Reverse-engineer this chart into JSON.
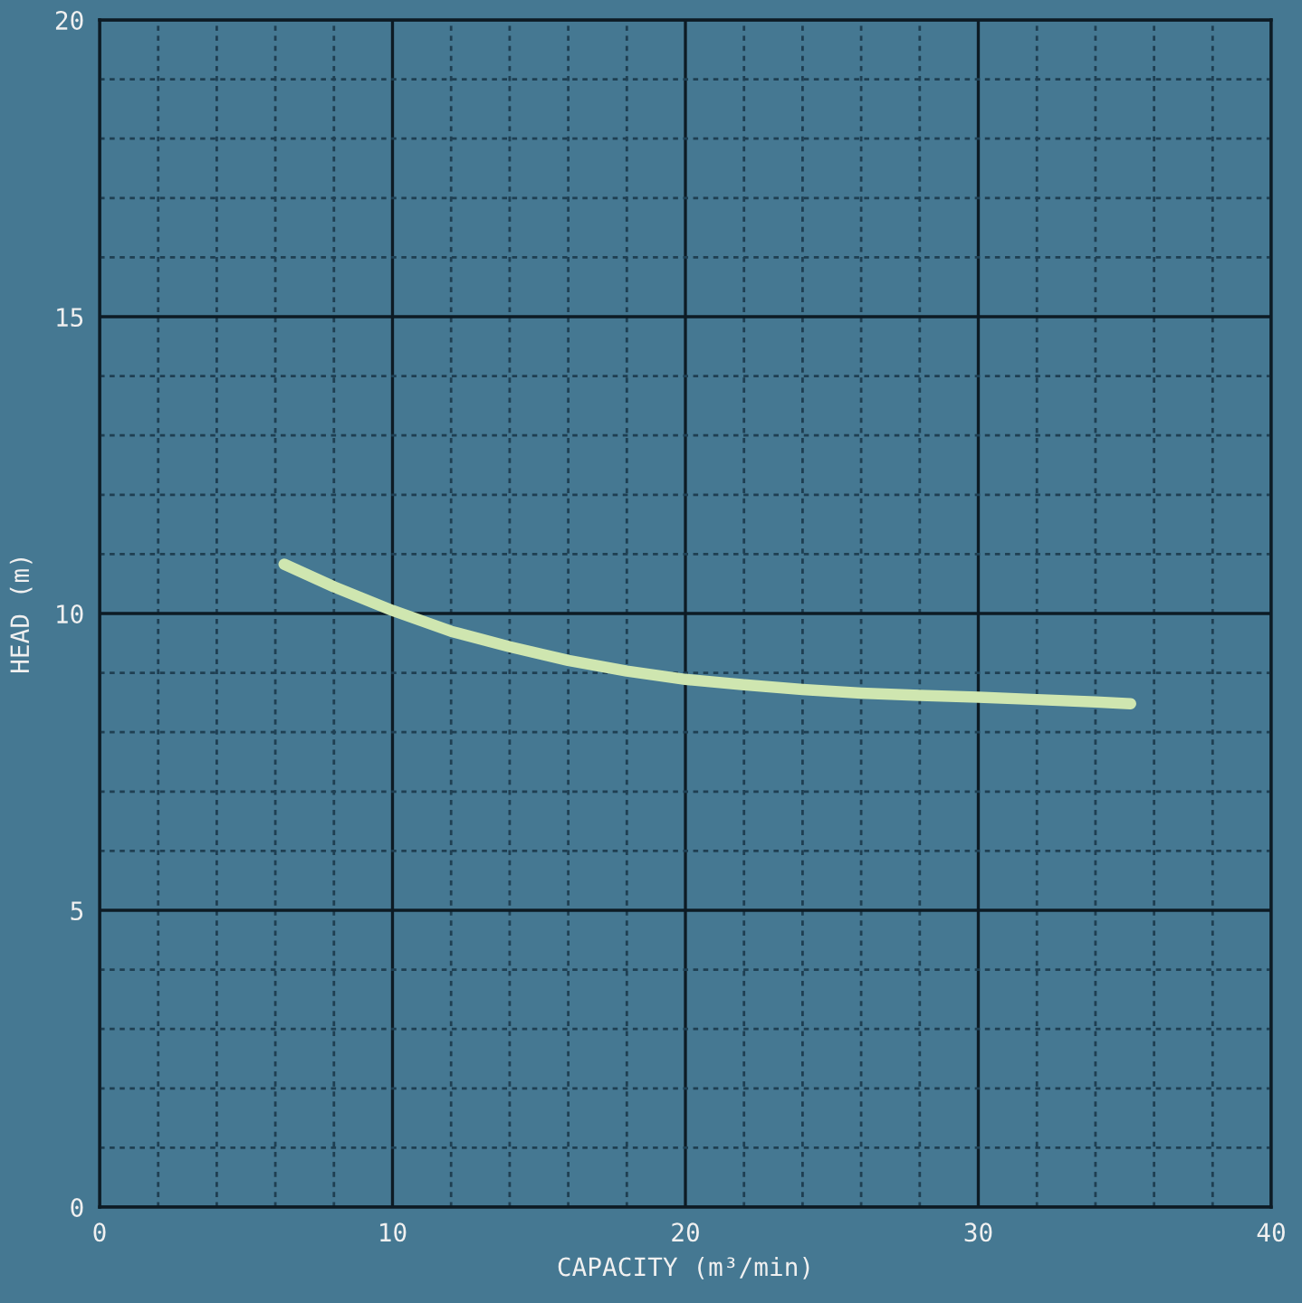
{
  "chart_data": {
    "type": "line",
    "xlabel": "CAPACITY (m³/min)",
    "ylabel": "HEAD (m)",
    "series": [
      {
        "color": "#cfe6b0",
        "x": [
          6.3,
          8,
          10,
          12,
          14,
          16,
          18,
          20,
          22,
          24,
          26,
          28,
          30,
          32,
          34,
          35.2
        ],
        "values": [
          10.83,
          10.45,
          10.05,
          9.7,
          9.44,
          9.21,
          9.03,
          8.89,
          8.8,
          8.72,
          8.66,
          8.62,
          8.59,
          8.55,
          8.51,
          8.48
        ]
      }
    ],
    "xlim": [
      0,
      40
    ],
    "ylim": [
      0,
      20
    ],
    "xticks": [
      0,
      {
        "value": 2,
        "label": null
      },
      {
        "value": 4,
        "label": null
      },
      {
        "value": 6,
        "label": null
      },
      {
        "value": 8,
        "label": null
      },
      10,
      {
        "value": 12,
        "label": null
      },
      {
        "value": 14,
        "label": null
      },
      {
        "value": 16,
        "label": null
      },
      {
        "value": 18,
        "label": null
      },
      20,
      {
        "value": 22,
        "label": null
      },
      {
        "value": 24,
        "label": null
      },
      {
        "value": 26,
        "label": null
      },
      {
        "value": 28,
        "label": null
      },
      30,
      {
        "value": 32,
        "label": null
      },
      {
        "value": 34,
        "label": null
      },
      {
        "value": 36,
        "label": null
      },
      {
        "value": 38,
        "label": null
      },
      40
    ],
    "yticks": [
      0,
      {
        "value": 1,
        "label": null
      },
      {
        "value": 2,
        "label": null
      },
      {
        "value": 3,
        "label": null
      },
      {
        "value": 4,
        "label": null
      },
      5,
      {
        "value": 6,
        "label": null
      },
      {
        "value": 7,
        "label": null
      },
      {
        "value": 8,
        "label": null
      },
      {
        "value": 9,
        "label": null
      },
      10,
      {
        "value": 11,
        "label": null
      },
      {
        "value": 12,
        "label": null
      },
      {
        "value": 13,
        "label": null
      },
      {
        "value": 14,
        "label": null
      },
      15,
      {
        "value": 16,
        "label": null
      },
      {
        "value": 17,
        "label": null
      },
      {
        "value": 18,
        "label": null
      },
      {
        "value": 19,
        "label": null
      },
      20
    ],
    "grid": true,
    "marker": "none",
    "line_style": "solid"
  }
}
